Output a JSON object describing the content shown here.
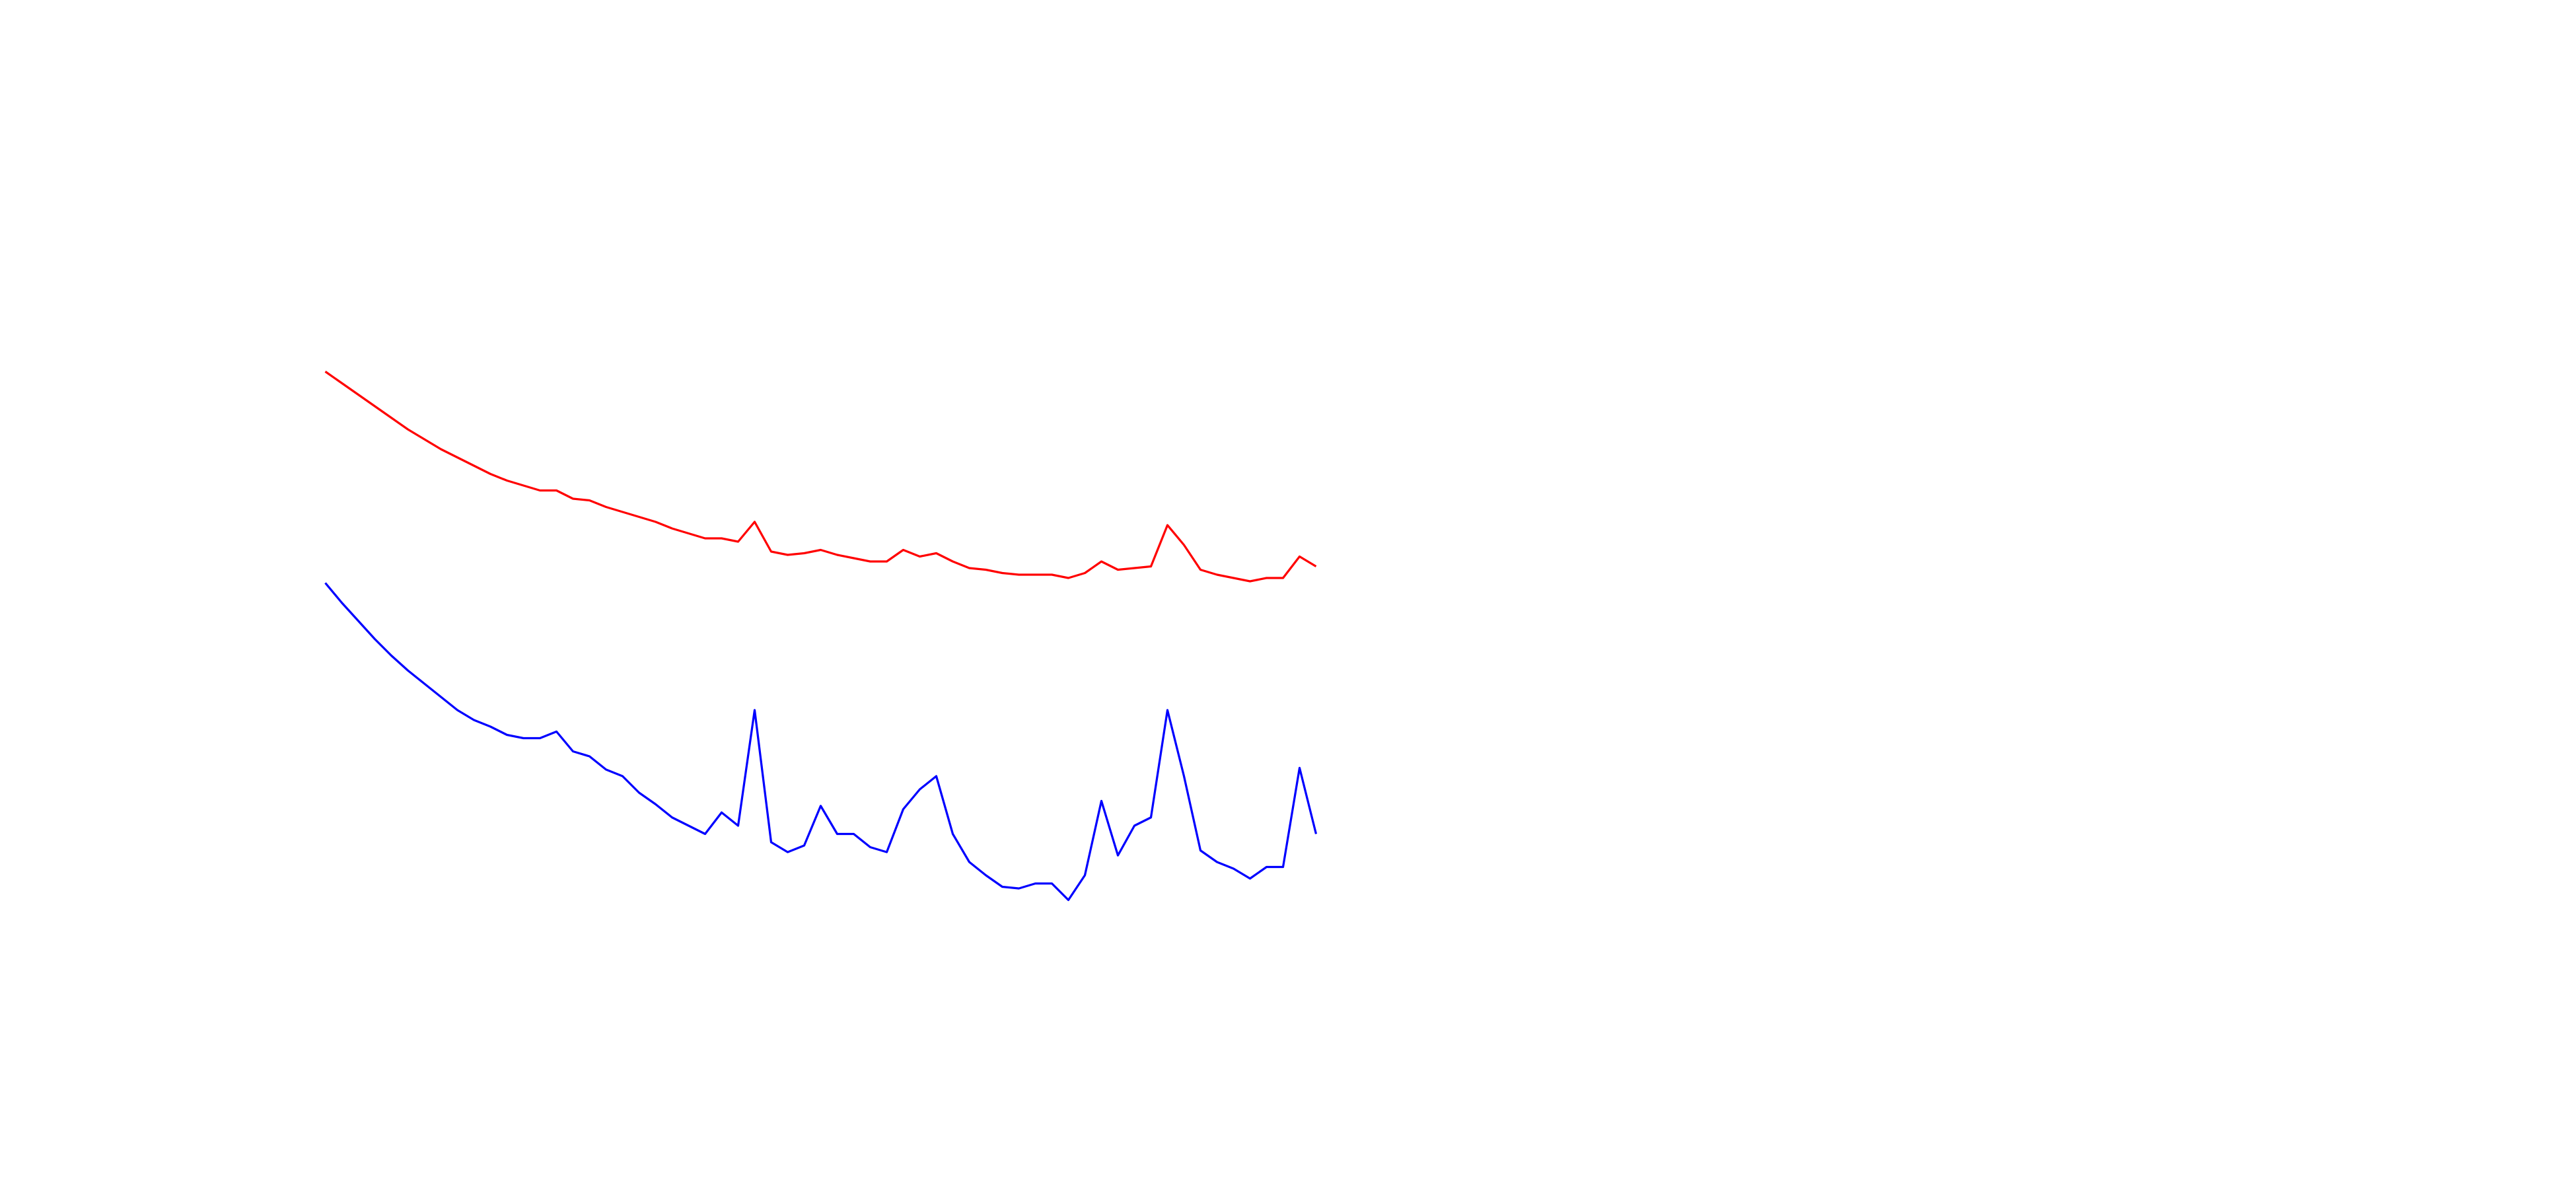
{
  "chart_data": {
    "type": "line",
    "series": [
      {
        "color": "#ff0000",
        "values": [
          495,
          488,
          481,
          474,
          467,
          460,
          454,
          448,
          443,
          438,
          433,
          429,
          426,
          423,
          423,
          418,
          417,
          413,
          410,
          407,
          404,
          400,
          397,
          394,
          394,
          392,
          404,
          386,
          384,
          385,
          387,
          384,
          382,
          380,
          380,
          387,
          383,
          385,
          380,
          376,
          375,
          373,
          372,
          372,
          372,
          370,
          373,
          380,
          375,
          376,
          377,
          402,
          390,
          375,
          372,
          370,
          368,
          370,
          370,
          383,
          377
        ]
      },
      {
        "color": "#0000ff",
        "values": [
          367,
          355,
          344,
          333,
          323,
          314,
          306,
          298,
          290,
          284,
          280,
          275,
          273,
          273,
          277,
          265,
          262,
          254,
          250,
          240,
          233,
          225,
          220,
          215,
          228,
          220,
          290,
          210,
          204,
          208,
          232,
          215,
          215,
          207,
          204,
          230,
          242,
          250,
          215,
          198,
          190,
          183,
          182,
          185,
          185,
          175,
          190,
          235,
          202,
          220,
          225,
          290,
          250,
          205,
          198,
          194,
          188,
          195,
          195,
          255,
          215
        ]
      }
    ],
    "ylim": [
      0,
      720
    ]
  }
}
